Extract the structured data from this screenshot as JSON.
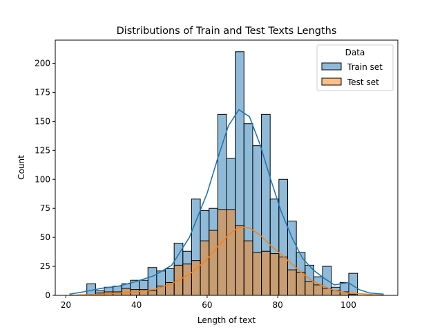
{
  "chart_data": {
    "type": "histogram",
    "title": "Distributions of Train and Test Texts Lengths",
    "xlabel": "Length of text",
    "ylabel": "Count",
    "xlim": [
      17,
      114
    ],
    "ylim": [
      0,
      220
    ],
    "xticks": [
      20,
      40,
      60,
      80,
      100
    ],
    "yticks": [
      0,
      25,
      50,
      75,
      100,
      125,
      150,
      175,
      200
    ],
    "bin_edges": [
      21,
      23.47,
      25.94,
      28.42,
      30.89,
      33.36,
      35.83,
      38.31,
      40.78,
      43.25,
      45.72,
      48.19,
      50.67,
      53.14,
      55.61,
      58.08,
      60.56,
      63.03,
      65.5,
      67.97,
      70.44,
      72.92,
      75.39,
      77.86,
      80.33,
      82.81,
      85.28,
      87.75,
      90.22,
      92.69,
      95.17,
      97.64,
      100.11,
      102.58,
      105.06,
      107.53,
      110
    ],
    "legend": {
      "title": "Data",
      "position": "upper right"
    },
    "series": [
      {
        "name": "Train set",
        "color": "#1f77b4",
        "values": [
          0,
          0,
          10,
          4,
          7,
          8,
          10,
          13,
          13,
          24,
          21,
          23,
          45,
          38,
          83,
          73,
          75,
          156,
          118,
          210,
          148,
          129,
          156,
          83,
          100,
          64,
          37,
          26,
          16,
          25,
          7,
          11,
          19,
          0,
          0,
          0
        ],
        "kde": [
          [
            21,
            1
          ],
          [
            25,
            3
          ],
          [
            30,
            6
          ],
          [
            35,
            8
          ],
          [
            40,
            12
          ],
          [
            45,
            17
          ],
          [
            50,
            26
          ],
          [
            55,
            50
          ],
          [
            60,
            88
          ],
          [
            63,
            118
          ],
          [
            66,
            146
          ],
          [
            69,
            160
          ],
          [
            72,
            154
          ],
          [
            75,
            130
          ],
          [
            78,
            100
          ],
          [
            81,
            72
          ],
          [
            84,
            50
          ],
          [
            87,
            32
          ],
          [
            90,
            22
          ],
          [
            93,
            15
          ],
          [
            96,
            9
          ],
          [
            100,
            11
          ],
          [
            103,
            5
          ],
          [
            106,
            2
          ],
          [
            110,
            1
          ]
        ]
      },
      {
        "name": "Test set",
        "color": "#ff7f0e",
        "values": [
          0,
          0,
          0,
          2,
          3,
          3,
          6,
          5,
          5,
          4,
          8,
          11,
          26,
          27,
          30,
          47,
          56,
          74,
          74,
          60,
          47,
          37,
          38,
          36,
          33,
          22,
          20,
          12,
          9,
          6,
          4,
          3,
          1,
          0,
          0,
          0
        ],
        "kde": [
          [
            21,
            0
          ],
          [
            30,
            1
          ],
          [
            35,
            2
          ],
          [
            40,
            3
          ],
          [
            45,
            5
          ],
          [
            50,
            10
          ],
          [
            55,
            18
          ],
          [
            60,
            31
          ],
          [
            63,
            42
          ],
          [
            66,
            52
          ],
          [
            69,
            59
          ],
          [
            72,
            58
          ],
          [
            75,
            52
          ],
          [
            78,
            43
          ],
          [
            81,
            35
          ],
          [
            84,
            27
          ],
          [
            87,
            19
          ],
          [
            90,
            12
          ],
          [
            93,
            8
          ],
          [
            96,
            4
          ],
          [
            100,
            2
          ],
          [
            105,
            1
          ],
          [
            110,
            0
          ]
        ]
      }
    ]
  }
}
